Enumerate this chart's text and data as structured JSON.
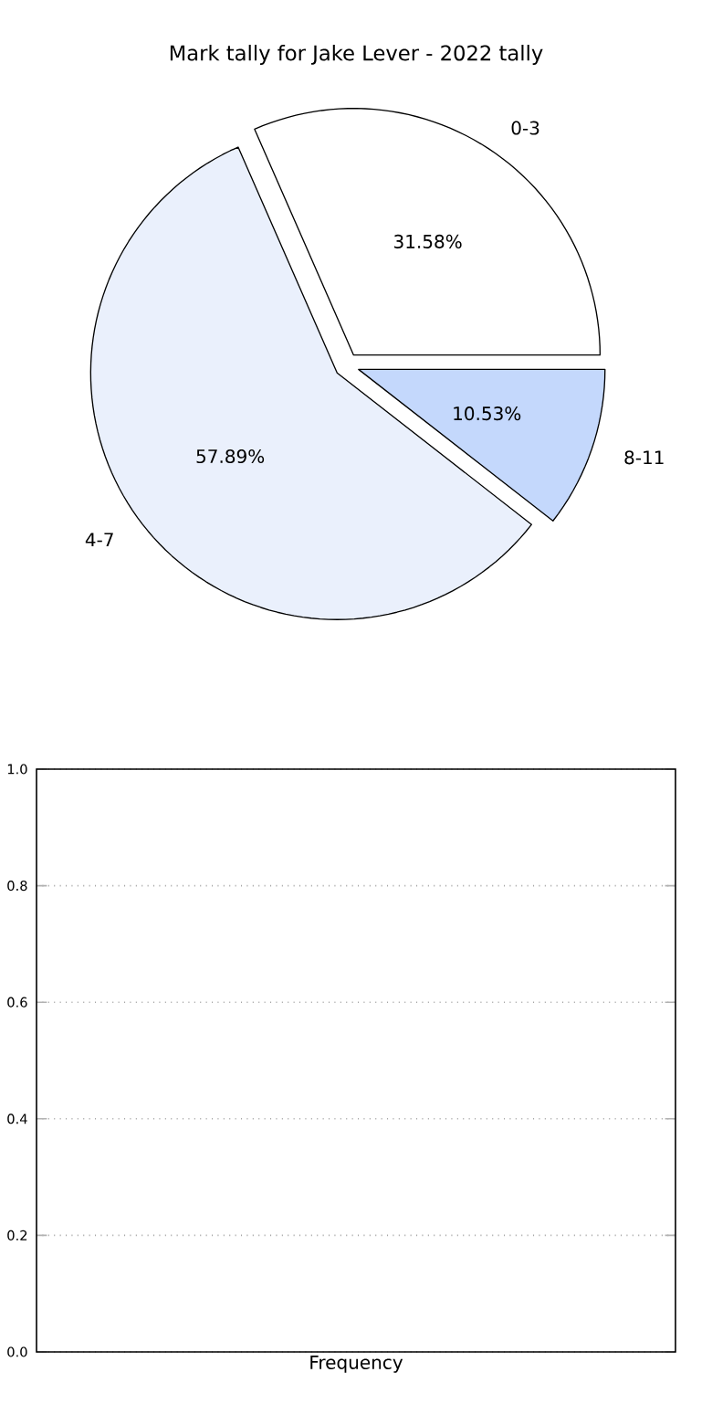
{
  "chart_data": [
    {
      "type": "pie",
      "title": "Mark tally for Jake Lever - 2022 tally",
      "categories": [
        "0-3",
        "4-7",
        "8-11"
      ],
      "values": [
        31.58,
        57.89,
        10.53
      ],
      "colors": [
        "#ffffff",
        "#eaf0fc",
        "#c4d8fc"
      ],
      "value_labels": [
        "31.58%",
        "57.89%",
        "10.53%"
      ]
    },
    {
      "type": "bar",
      "xlabel": "Frequency",
      "categories": [
        null
      ],
      "values": [
        null
      ],
      "ylim": [
        0,
        1
      ],
      "yticks": [
        {
          "value": 0,
          "label": "0.0"
        },
        0.2,
        0.4,
        0.6,
        0.8,
        {
          "value": 1,
          "label": "1.0"
        }
      ],
      "grid": "y"
    }
  ]
}
